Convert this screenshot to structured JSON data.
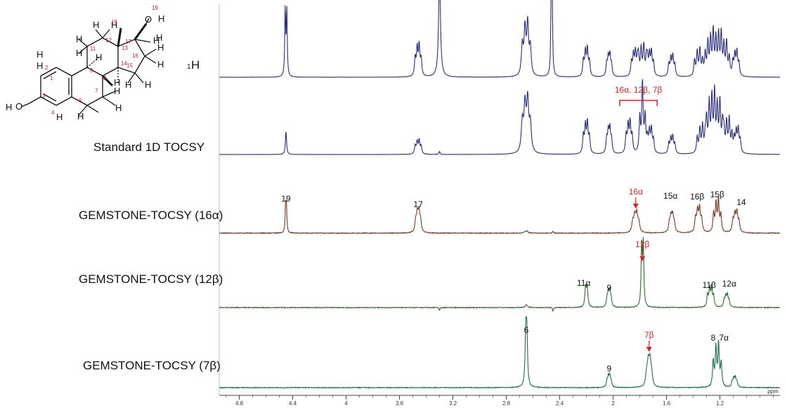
{
  "colors": {
    "navy": "#2b2f7a",
    "brown": "#7a3a22",
    "green": "#2f6e2f",
    "teal": "#1f6d55",
    "highlight": "#e02020"
  },
  "molecule": {
    "h1_label_main": "1",
    "h1_label_suffix": "H",
    "atoms": [
      "H",
      "H",
      "H",
      "H",
      "H",
      "H",
      "H",
      "H",
      "H",
      "H",
      "H",
      "H",
      "H",
      "H",
      "H",
      "H",
      "H",
      "H",
      "H",
      "O",
      "H",
      "O"
    ],
    "atom_numbers": [
      "1",
      "2",
      "3",
      "4",
      "6",
      "7",
      "8",
      "9",
      "11",
      "12",
      "13",
      "14",
      "15",
      "16",
      "17",
      "18",
      "19"
    ]
  },
  "chart_data": {
    "type": "line",
    "xlabel": "ppm",
    "xlim": [
      4.95,
      0.75
    ],
    "x_ticks": [
      "4.8",
      "4.4",
      "4",
      "3.6",
      "3.2",
      "2.8",
      "2.4",
      "2",
      "1.6",
      "1.2"
    ],
    "series": [
      {
        "name": "1H",
        "color": "navy",
        "peaks": [
          {
            "x": 4.45,
            "h": 1.0,
            "w": 0.004,
            "pat": "d",
            "j": 0.012
          },
          {
            "x": 3.46,
            "h": 0.45,
            "w": 0.006,
            "pat": "m",
            "j": 0.015
          },
          {
            "x": 3.3,
            "h": 1.6,
            "w": 0.008,
            "pat": "s"
          },
          {
            "x": 2.65,
            "h": 0.75,
            "w": 0.008,
            "pat": "m",
            "j": 0.02
          },
          {
            "x": 2.46,
            "h": 1.25,
            "w": 0.004,
            "pat": "d",
            "j": 0.006
          },
          {
            "x": 2.2,
            "h": 0.4,
            "w": 0.006,
            "pat": "m",
            "j": 0.015
          },
          {
            "x": 2.03,
            "h": 0.3,
            "w": 0.006,
            "pat": "m",
            "j": 0.012
          },
          {
            "x": 1.84,
            "h": 0.35,
            "w": 0.006,
            "pat": "m",
            "j": 0.015
          },
          {
            "x": 1.78,
            "h": 0.45,
            "w": 0.006,
            "pat": "m",
            "j": 0.02
          },
          {
            "x": 1.72,
            "h": 0.35,
            "w": 0.006,
            "pat": "m",
            "j": 0.015
          },
          {
            "x": 1.56,
            "h": 0.3,
            "w": 0.006,
            "pat": "m",
            "j": 0.015
          },
          {
            "x": 1.36,
            "h": 0.4,
            "w": 0.006,
            "pat": "m",
            "j": 0.02
          },
          {
            "x": 1.28,
            "h": 0.55,
            "w": 0.006,
            "pat": "m",
            "j": 0.02
          },
          {
            "x": 1.22,
            "h": 0.6,
            "w": 0.006,
            "pat": "m",
            "j": 0.02
          },
          {
            "x": 1.16,
            "h": 0.5,
            "w": 0.006,
            "pat": "m",
            "j": 0.02
          },
          {
            "x": 1.08,
            "h": 0.35,
            "w": 0.006,
            "pat": "m",
            "j": 0.015
          }
        ]
      },
      {
        "name": "Standard 1D TOCSY",
        "color": "navy",
        "peaks": [
          {
            "x": 4.45,
            "h": 0.35,
            "w": 0.005,
            "pat": "s"
          },
          {
            "x": 3.46,
            "h": 0.2,
            "w": 0.006,
            "pat": "m",
            "j": 0.015
          },
          {
            "x": 3.3,
            "h": 0.05,
            "w": 0.004,
            "pat": "s"
          },
          {
            "x": 2.65,
            "h": 0.75,
            "w": 0.009,
            "pat": "m",
            "j": 0.02
          },
          {
            "x": 2.2,
            "h": 0.45,
            "w": 0.006,
            "pat": "m",
            "j": 0.015
          },
          {
            "x": 2.03,
            "h": 0.35,
            "w": 0.006,
            "pat": "m",
            "j": 0.012
          },
          {
            "x": 1.88,
            "h": 0.45,
            "w": 0.006,
            "pat": "m",
            "j": 0.015
          },
          {
            "x": 1.78,
            "h": 1.05,
            "w": 0.006,
            "pat": "t",
            "j": 0.02
          },
          {
            "x": 1.72,
            "h": 0.35,
            "w": 0.006,
            "pat": "m",
            "j": 0.015
          },
          {
            "x": 1.56,
            "h": 0.25,
            "w": 0.006,
            "pat": "m",
            "j": 0.015
          },
          {
            "x": 1.34,
            "h": 0.4,
            "w": 0.006,
            "pat": "m",
            "j": 0.02
          },
          {
            "x": 1.27,
            "h": 0.8,
            "w": 0.006,
            "pat": "m",
            "j": 0.02
          },
          {
            "x": 1.21,
            "h": 0.75,
            "w": 0.006,
            "pat": "m",
            "j": 0.02
          },
          {
            "x": 1.14,
            "h": 0.5,
            "w": 0.006,
            "pat": "m",
            "j": 0.02
          },
          {
            "x": 1.07,
            "h": 0.35,
            "w": 0.006,
            "pat": "m",
            "j": 0.015
          }
        ]
      },
      {
        "name": "GEMSTONE-TOCSY (16α)",
        "color": "brown",
        "peaks": [
          {
            "x": 4.45,
            "h": 0.8,
            "w": 0.004,
            "pat": "d",
            "j": 0.006
          },
          {
            "x": 3.46,
            "h": 0.6,
            "w": 0.007,
            "pat": "m",
            "j": 0.012
          },
          {
            "x": 2.65,
            "h": 0.08,
            "w": 0.012,
            "pat": "s"
          },
          {
            "x": 2.45,
            "h": 0.07,
            "w": 0.004,
            "pat": "s"
          },
          {
            "x": 1.83,
            "h": 0.55,
            "w": 0.008,
            "pat": "m",
            "j": 0.015
          },
          {
            "x": 1.56,
            "h": 0.5,
            "w": 0.007,
            "pat": "m",
            "j": 0.012
          },
          {
            "x": 1.36,
            "h": 0.7,
            "w": 0.007,
            "pat": "m",
            "j": 0.015
          },
          {
            "x": 1.22,
            "h": 1.0,
            "w": 0.006,
            "pat": "m",
            "j": 0.018
          },
          {
            "x": 1.08,
            "h": 0.6,
            "w": 0.007,
            "pat": "m",
            "j": 0.015
          }
        ],
        "labels": [
          {
            "x": 4.45,
            "text": "19",
            "highlight": false
          },
          {
            "x": 3.46,
            "text": "17",
            "highlight": false
          },
          {
            "x": 1.83,
            "text": "16α",
            "highlight": true
          },
          {
            "x": 1.57,
            "text": "15α",
            "highlight": false
          },
          {
            "x": 1.37,
            "text": "16β",
            "highlight": false
          },
          {
            "x": 1.22,
            "text": "15β",
            "highlight": false
          },
          {
            "x": 1.04,
            "text": "14",
            "highlight": false
          }
        ]
      },
      {
        "name": "GEMSTONE-TOCSY (12β)",
        "color": "green",
        "peaks": [
          {
            "x": 2.65,
            "h": 0.05,
            "w": 0.01,
            "pat": "s"
          },
          {
            "x": 2.45,
            "h": -0.06,
            "w": 0.004,
            "pat": "s"
          },
          {
            "x": 3.3,
            "h": -0.05,
            "w": 0.004,
            "pat": "s"
          },
          {
            "x": 2.2,
            "h": 0.35,
            "w": 0.006,
            "pat": "d",
            "j": 0.012
          },
          {
            "x": 2.03,
            "h": 0.25,
            "w": 0.006,
            "pat": "m",
            "j": 0.01
          },
          {
            "x": 1.78,
            "h": 1.1,
            "w": 0.005,
            "pat": "d",
            "j": 0.012
          },
          {
            "x": 1.27,
            "h": 0.35,
            "w": 0.006,
            "pat": "m",
            "j": 0.015
          },
          {
            "x": 1.15,
            "h": 0.2,
            "w": 0.006,
            "pat": "m",
            "j": 0.012
          }
        ],
        "labels": [
          {
            "x": 2.22,
            "text": "11α",
            "highlight": false
          },
          {
            "x": 2.03,
            "text": "9",
            "highlight": false
          },
          {
            "x": 1.78,
            "text": "12β",
            "highlight": true
          },
          {
            "x": 1.28,
            "text": "11β",
            "highlight": false
          },
          {
            "x": 1.13,
            "text": "12α",
            "highlight": false
          }
        ]
      },
      {
        "name": "GEMSTONE-TOCSY (7β)",
        "color": "teal",
        "peaks": [
          {
            "x": 2.65,
            "h": 1.0,
            "w": 0.006,
            "pat": "d",
            "j": 0.008
          },
          {
            "x": 2.03,
            "h": 0.2,
            "w": 0.006,
            "pat": "m",
            "j": 0.01
          },
          {
            "x": 1.73,
            "h": 0.45,
            "w": 0.008,
            "pat": "m",
            "j": 0.012
          },
          {
            "x": 1.22,
            "h": 0.85,
            "w": 0.006,
            "pat": "m",
            "j": 0.02
          },
          {
            "x": 1.09,
            "h": 0.18,
            "w": 0.006,
            "pat": "m",
            "j": 0.012
          }
        ],
        "labels": [
          {
            "x": 2.65,
            "text": "6",
            "highlight": false
          },
          {
            "x": 2.03,
            "text": "9",
            "highlight": false
          },
          {
            "x": 1.73,
            "text": "7β",
            "highlight": true
          },
          {
            "x": 1.25,
            "text": "8",
            "highlight": false
          },
          {
            "x": 1.17,
            "text": "7α",
            "highlight": false
          }
        ]
      }
    ],
    "bracket": {
      "x_from": 1.95,
      "x_to": 1.67,
      "text": "16α, 12β, 7β"
    }
  }
}
